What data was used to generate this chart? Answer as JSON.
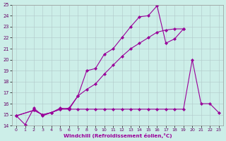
{
  "xlabel": "Windchill (Refroidissement éolien,°C)",
  "bg_color": "#cceee8",
  "line_color": "#990099",
  "xlim": [
    -0.5,
    23.5
  ],
  "ylim": [
    14,
    25
  ],
  "xticks": [
    0,
    1,
    2,
    3,
    4,
    5,
    6,
    7,
    8,
    9,
    10,
    11,
    12,
    13,
    14,
    15,
    16,
    17,
    18,
    19,
    20,
    21,
    22,
    23
  ],
  "yticks": [
    14,
    15,
    16,
    17,
    18,
    19,
    20,
    21,
    22,
    23,
    24,
    25
  ],
  "line1_x": [
    0,
    1,
    2,
    3,
    4,
    5,
    6,
    7,
    8,
    9,
    10,
    11,
    12,
    13,
    14,
    15,
    16,
    17,
    18,
    19
  ],
  "line1_y": [
    14.9,
    14.1,
    15.6,
    14.9,
    15.2,
    15.6,
    15.5,
    16.7,
    19.0,
    19.2,
    20.5,
    21.0,
    22.0,
    23.0,
    23.9,
    24.0,
    24.9,
    21.5,
    21.9,
    22.8
  ],
  "line2_x": [
    0,
    2,
    3,
    4,
    5,
    6,
    7,
    8,
    9,
    10,
    11,
    12,
    13,
    14,
    15,
    16,
    17,
    18,
    19,
    20,
    21,
    22,
    23
  ],
  "line2_y": [
    14.9,
    15.4,
    15.0,
    15.2,
    15.5,
    15.5,
    15.5,
    15.5,
    15.5,
    15.5,
    15.5,
    15.5,
    15.5,
    15.5,
    15.5,
    15.5,
    15.5,
    15.5,
    15.5,
    20.0,
    16.0,
    16.0,
    15.2
  ],
  "line3_x": [
    0,
    2,
    3,
    4,
    5,
    6,
    7,
    8,
    9,
    10,
    11,
    12,
    13,
    14,
    15,
    16,
    17,
    18,
    19
  ],
  "line3_y": [
    14.9,
    15.4,
    15.0,
    15.2,
    15.5,
    15.6,
    16.7,
    17.3,
    17.8,
    18.7,
    19.5,
    20.3,
    21.0,
    21.5,
    22.0,
    22.5,
    22.7,
    22.8,
    22.8
  ]
}
